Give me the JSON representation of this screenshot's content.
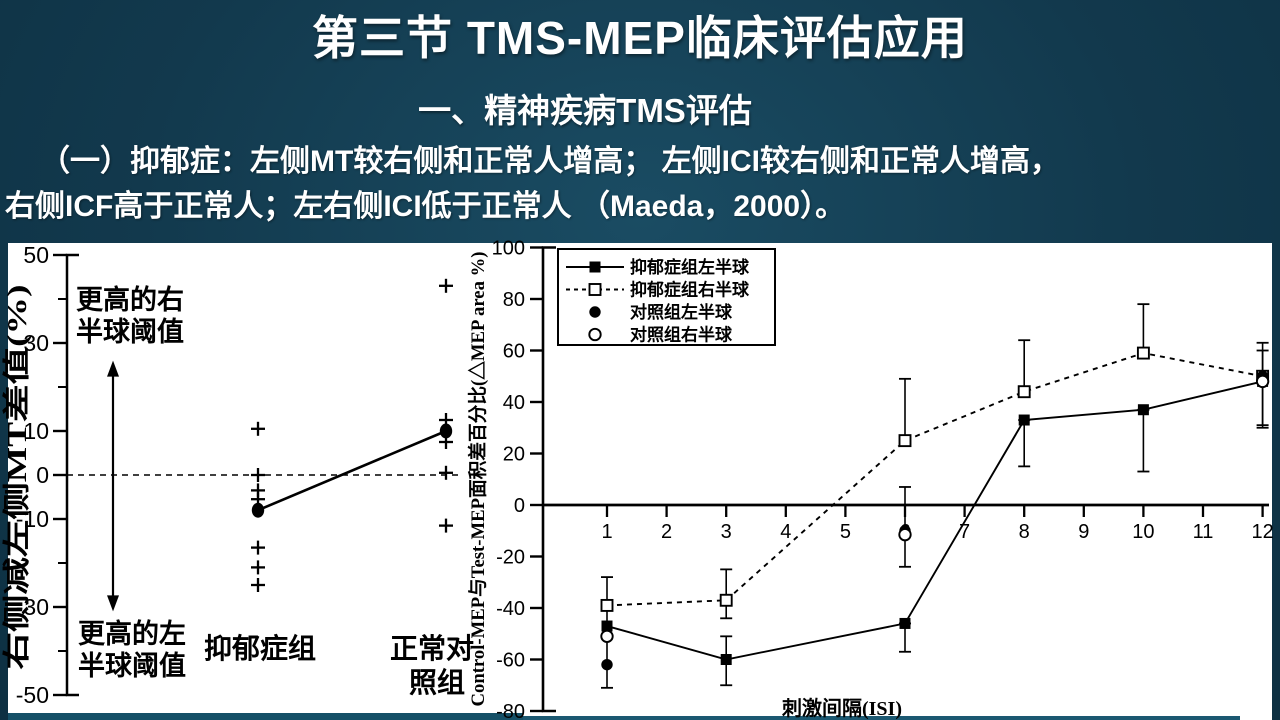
{
  "slide": {
    "title": "第三节  TMS-MEP临床评估应用",
    "subtitle": "一、精神疾病TMS评估",
    "body_line1": "（一）抑郁症：左侧MT较右侧和正常人增高； 左侧ICI较右侧和正常人增高，",
    "body_line2": "右侧ICF高于正常人；左右侧ICI低于正常人 （Maeda，2000）。",
    "background_color": "#12394d",
    "text_color": "#ffffff",
    "panel_color": "#ffffff"
  },
  "chart_data": [
    {
      "type": "scatter",
      "title": "",
      "xlabel": "",
      "ylabel": "右侧减左侧MT差值(%)",
      "ylim": [
        -50,
        50
      ],
      "yticks_major": [
        50,
        30,
        10,
        0,
        -10,
        -30,
        -50
      ],
      "yticks_minor": [
        40,
        20,
        -20,
        -40
      ],
      "zero_line": "dashed",
      "annotations": {
        "upper_lines": [
          "更高的右",
          "半球阈值"
        ],
        "lower_lines": [
          "更高的左",
          "半球阈值"
        ],
        "double_arrow": {
          "from": 26,
          "to": -31
        }
      },
      "groups": [
        {
          "label": "抑郁症组",
          "label_lines": [
            "抑郁症组"
          ],
          "points": [
            10.5,
            0,
            -3.5,
            -5.5,
            -16.5,
            -21,
            -25
          ],
          "mean": -8
        },
        {
          "label": "正常对照组",
          "label_lines": [
            "正常对",
            "照组"
          ],
          "points": [
            43,
            12.5,
            7.5,
            0.5,
            -11.5
          ],
          "mean": 10
        }
      ],
      "mean_line_between_groups": true,
      "point_marker": "plus",
      "mean_marker": "filled-circle"
    },
    {
      "type": "line",
      "title": "",
      "xlabel": "刺激间隔(ISI)",
      "ylabel": "Control-MEP与Test-MEP面积差百分比(△MEP area %)",
      "xlim": [
        0,
        12.5
      ],
      "ylim": [
        -80,
        100
      ],
      "xticks": [
        1,
        2,
        3,
        4,
        5,
        6,
        7,
        8,
        9,
        10,
        11,
        12
      ],
      "yticks": [
        100,
        80,
        60,
        40,
        20,
        0,
        -20,
        -40,
        -60,
        -80
      ],
      "grid": false,
      "legend_position": "top-left",
      "series": [
        {
          "name": "抑郁症组左半球",
          "marker": "filled-square",
          "line": "solid",
          "x": [
            1,
            3,
            6,
            8,
            10,
            12
          ],
          "y": [
            -47,
            -60,
            -46,
            33,
            37,
            48
          ]
        },
        {
          "name": "抑郁症组右半球",
          "marker": "open-square",
          "line": "dashed",
          "x": [
            1,
            3,
            6,
            8,
            10,
            12
          ],
          "y": [
            -39,
            -37,
            25,
            44,
            59,
            50
          ]
        },
        {
          "name": "对照组左半球",
          "marker": "filled-circle",
          "line": "none",
          "x": [
            1,
            6,
            12
          ],
          "y": [
            -62,
            -10,
            50
          ]
        },
        {
          "name": "对照组右半球",
          "marker": "open-circle",
          "line": "none",
          "x": [
            1,
            6,
            12
          ],
          "y": [
            -51,
            -11.5,
            48
          ]
        }
      ],
      "error_bars": [
        {
          "x": 1,
          "top": -28,
          "bottom": -71
        },
        {
          "x": 3,
          "top": -25,
          "bottom": -44
        },
        {
          "x": 3,
          "top": -51,
          "bottom": -70
        },
        {
          "x": 6,
          "top": 49,
          "bottom": 25
        },
        {
          "x": 6,
          "top": 7,
          "bottom": -24
        },
        {
          "x": 6,
          "top": -46,
          "bottom": -57
        },
        {
          "x": 8,
          "top": 64,
          "bottom": 44
        },
        {
          "x": 8,
          "top": 33,
          "bottom": 15
        },
        {
          "x": 10,
          "top": 78,
          "bottom": 59
        },
        {
          "x": 10,
          "top": 37,
          "bottom": 13
        },
        {
          "x": 12,
          "top": 63,
          "bottom": 31
        },
        {
          "x": 12,
          "top": 60,
          "bottom": 30
        }
      ]
    }
  ]
}
